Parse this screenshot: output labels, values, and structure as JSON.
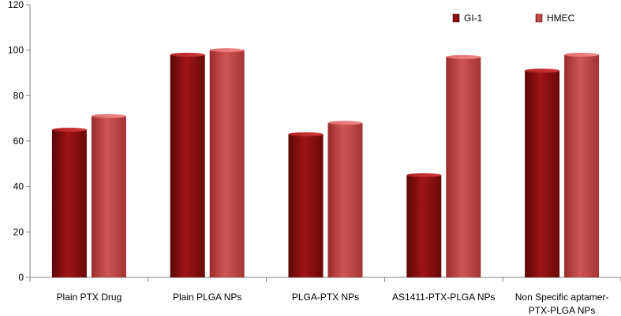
{
  "chart_data": {
    "type": "bar",
    "title": "",
    "xlabel": "",
    "ylabel": "",
    "ylim": [
      0,
      120
    ],
    "yticks": [
      0,
      20,
      40,
      60,
      80,
      100,
      120
    ],
    "yticks_text": [
      "0",
      "20",
      "40",
      "60",
      "80",
      "100",
      "120"
    ],
    "grid": false,
    "legend_position": "top-right",
    "categories": [
      [
        "Plain PTX Drug"
      ],
      [
        "Plain PLGA NPs"
      ],
      [
        "PLGA-PTX NPs"
      ],
      [
        "AS1411-PTX-PLGA NPs"
      ],
      [
        "Non Specific aptamer-",
        "PTX-PLGA NPs"
      ]
    ],
    "series": [
      {
        "name": "GI-1",
        "color": "#8e1212",
        "values": [
          65,
          98,
          63,
          45,
          91
        ]
      },
      {
        "name": "HMEC",
        "color": "#c94545",
        "values": [
          71,
          100,
          68,
          97,
          98
        ]
      }
    ]
  }
}
